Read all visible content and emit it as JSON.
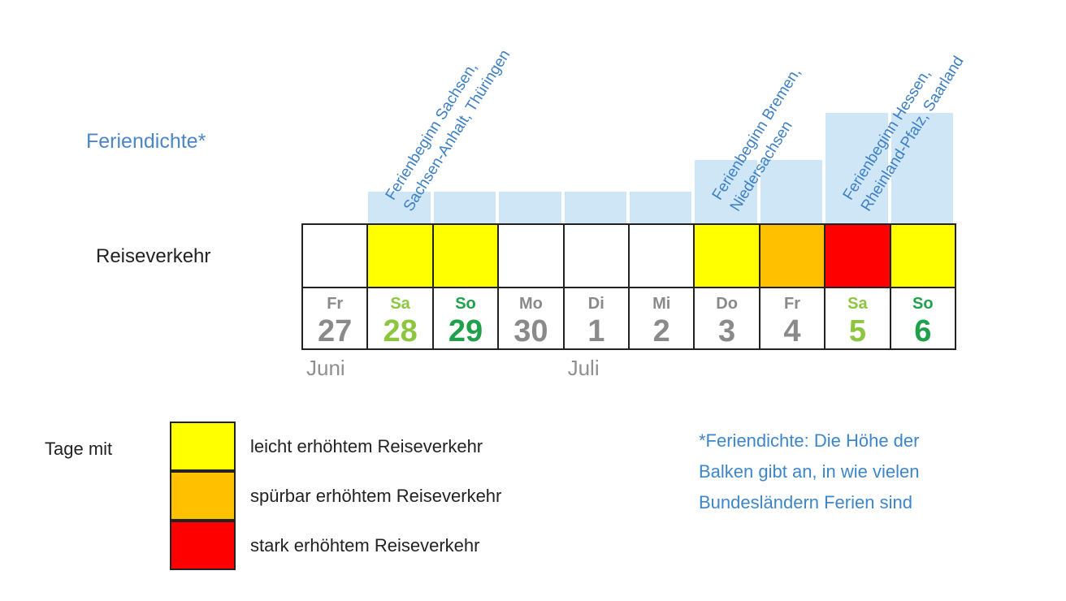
{
  "chart_data": {
    "type": "table",
    "row_labels": {
      "density": "Feriendichte*",
      "traffic": "Reiseverkehr"
    },
    "days": [
      {
        "weekday": "Fr",
        "day": "27",
        "traffic": "none",
        "density": 0,
        "weekend": ""
      },
      {
        "weekday": "Sa",
        "day": "28",
        "traffic": "leicht",
        "density": 2,
        "weekend": "sat"
      },
      {
        "weekday": "So",
        "day": "29",
        "traffic": "leicht",
        "density": 2,
        "weekend": "sun"
      },
      {
        "weekday": "Mo",
        "day": "30",
        "traffic": "none",
        "density": 2,
        "weekend": ""
      },
      {
        "weekday": "Di",
        "day": "1",
        "traffic": "none",
        "density": 2,
        "weekend": ""
      },
      {
        "weekday": "Mi",
        "day": "2",
        "traffic": "none",
        "density": 2,
        "weekend": ""
      },
      {
        "weekday": "Do",
        "day": "3",
        "traffic": "leicht",
        "density": 4,
        "weekend": ""
      },
      {
        "weekday": "Fr",
        "day": "4",
        "traffic": "spuerbar",
        "density": 4,
        "weekend": ""
      },
      {
        "weekday": "Sa",
        "day": "5",
        "traffic": "stark",
        "density": 7,
        "weekend": "sat"
      },
      {
        "weekday": "So",
        "day": "6",
        "traffic": "leicht",
        "density": 7,
        "weekend": "sun"
      }
    ],
    "months": [
      {
        "label": "Juni",
        "start_index": 0
      },
      {
        "label": "Juli",
        "start_index": 4
      }
    ],
    "annotations": [
      {
        "day_index": 1,
        "lines": [
          "Ferienbeginn Sachsen,",
          "Sachsen-Anhalt, Thüringen"
        ]
      },
      {
        "day_index": 6,
        "lines": [
          "Ferienbeginn Bremen,",
          "Niedersachsen"
        ]
      },
      {
        "day_index": 8,
        "lines": [
          "Ferienbeginn Hessen,",
          "Rheinland-Pfalz, Saarland"
        ]
      }
    ],
    "legend": {
      "title": "Tage mit",
      "items": [
        {
          "key": "leicht",
          "label": "leicht erhöhtem Reiseverkehr"
        },
        {
          "key": "spuerbar",
          "label": "spürbar erhöhtem Reiseverkehr"
        },
        {
          "key": "stark",
          "label": "stark erhöhtem Reiseverkehr"
        }
      ]
    },
    "footnote_lines": [
      "*Feriendichte: Die Höhe der",
      "Balken gibt an, in wie vielen",
      "Bundesländern Ferien sind"
    ]
  },
  "colors": {
    "leicht": "#ffff00",
    "spuerbar": "#ffc000",
    "stark": "#ff0000",
    "none": "#ffffff",
    "density_bar": "#cfe6f7",
    "weekday_text": "#8a8a8a",
    "saturday_text": "#8cc63f",
    "sunday_text": "#1fa04a"
  }
}
